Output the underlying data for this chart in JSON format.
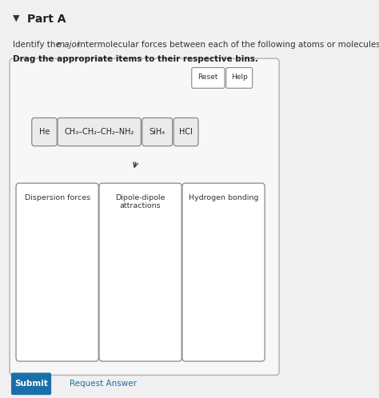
{
  "title": "Part A",
  "bg_color": "#f0f0f0",
  "panel_border": "#bbbbbb",
  "btn_reset_text": "Reset",
  "btn_help_text": "Help",
  "molecules": [
    "He",
    "CH₃–CH₂–CH₂–NH₂",
    "SiH₄",
    "HCl"
  ],
  "bins": [
    "Dispersion forces",
    "Dipole-dipole\nattractions",
    "Hydrogen bonding"
  ],
  "submit_text": "Submit",
  "request_text": "Request Answer",
  "submit_bg": "#1a6fa8",
  "submit_text_color": "#ffffff"
}
